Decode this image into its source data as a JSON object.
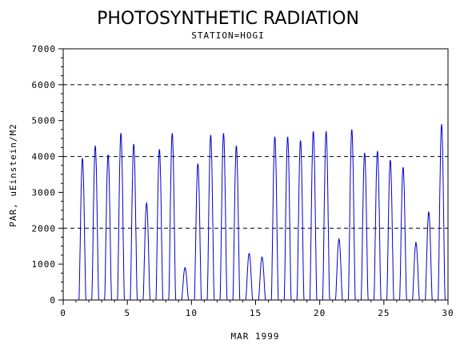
{
  "chart_data": {
    "type": "line",
    "title": "PHOTOSYNTHETIC RADIATION",
    "subtitle": "STATION=HOGI",
    "xlabel": "MAR 1999",
    "ylabel": "PAR, uEinstein/M2",
    "xlim": [
      0,
      30
    ],
    "ylim": [
      0,
      7000
    ],
    "x_ticks": [
      0,
      5,
      10,
      15,
      20,
      25,
      30
    ],
    "y_ticks": [
      0,
      1000,
      2000,
      3000,
      4000,
      5000,
      6000,
      7000
    ],
    "reference_lines": [
      2000,
      4000,
      6000
    ],
    "line_color": "#0000cc",
    "series": [
      {
        "description": "daily peaks (day of month, peak PAR)",
        "daily_peaks": [
          [
            1.5,
            3950
          ],
          [
            2.5,
            4300
          ],
          [
            3.5,
            4050
          ],
          [
            4.5,
            4650
          ],
          [
            5.5,
            4350
          ],
          [
            6.5,
            2700
          ],
          [
            7.5,
            4200
          ],
          [
            8.5,
            4650
          ],
          [
            9.5,
            900
          ],
          [
            10.5,
            3800
          ],
          [
            11.5,
            4600
          ],
          [
            12.5,
            4650
          ],
          [
            13.5,
            4300
          ],
          [
            14.5,
            1300
          ],
          [
            15.5,
            1200
          ],
          [
            16.5,
            4550
          ],
          [
            17.5,
            4550
          ],
          [
            18.5,
            4450
          ],
          [
            19.5,
            4700
          ],
          [
            20.5,
            4700
          ],
          [
            21.5,
            1700
          ],
          [
            22.5,
            4750
          ],
          [
            23.5,
            4100
          ],
          [
            24.5,
            4150
          ],
          [
            25.5,
            3900
          ],
          [
            26.5,
            3700
          ],
          [
            27.5,
            1600
          ],
          [
            28.5,
            2450
          ],
          [
            29.5,
            4900
          ]
        ]
      }
    ]
  }
}
